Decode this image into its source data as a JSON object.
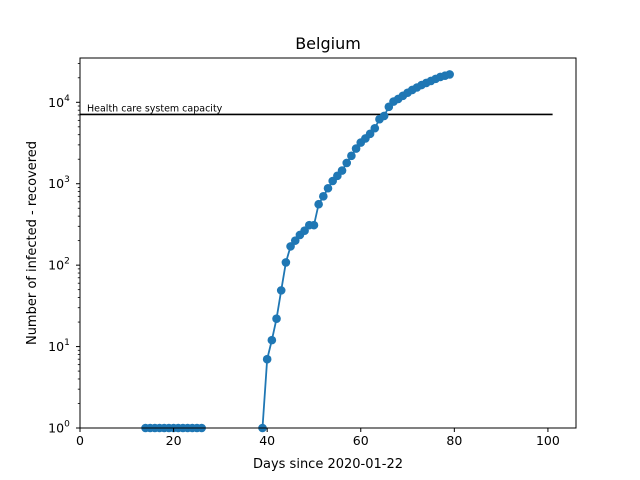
{
  "chart_data": {
    "type": "line",
    "title": "Belgium",
    "xlabel": "Days since 2020-01-22",
    "ylabel": "Number of infected - recovered",
    "xlim": [
      0,
      106
    ],
    "ylim": [
      1,
      35000
    ],
    "yscale": "log",
    "grid": false,
    "x_ticks": [
      0,
      20,
      40,
      60,
      80,
      100
    ],
    "x_tick_labels": [
      "0",
      "20",
      "40",
      "60",
      "80",
      "100"
    ],
    "y_ticks": [
      1,
      10,
      100,
      1000,
      10000
    ],
    "y_tick_labels": [
      {
        "base": "10",
        "exp": "0"
      },
      {
        "base": "10",
        "exp": "1"
      },
      {
        "base": "10",
        "exp": "2"
      },
      {
        "base": "10",
        "exp": "3"
      },
      {
        "base": "10",
        "exp": "4"
      }
    ],
    "series": [
      {
        "color": "#1f77b4",
        "x": [
          14,
          15,
          16,
          17,
          18,
          19,
          20,
          21,
          22,
          23,
          24,
          25,
          26,
          39,
          40,
          41,
          42,
          43,
          44,
          45,
          46,
          47,
          48,
          49,
          50,
          51,
          52,
          53,
          54,
          55,
          56,
          57,
          58,
          59,
          60,
          61,
          62,
          63,
          64,
          65,
          66,
          67,
          68,
          69,
          70,
          71,
          72,
          73,
          74,
          75,
          76,
          77,
          78,
          79
        ],
        "y": [
          1,
          1,
          1,
          1,
          1,
          1,
          1,
          1,
          1,
          1,
          1,
          1,
          1,
          1,
          7,
          12,
          22,
          49,
          108,
          170,
          200,
          235,
          265,
          310,
          310,
          560,
          700,
          880,
          1080,
          1250,
          1450,
          1800,
          2200,
          2700,
          3200,
          3600,
          4100,
          4800,
          6200,
          6800,
          8800,
          10200,
          11000,
          12000,
          13100,
          14200,
          15200,
          16300,
          17300,
          18300,
          19400,
          20500,
          21200,
          22000
        ]
      }
    ],
    "reference_line": {
      "y": 7100,
      "x_start": 0,
      "x_end": 101,
      "color": "#000000",
      "label": "Health care system capacity"
    }
  }
}
